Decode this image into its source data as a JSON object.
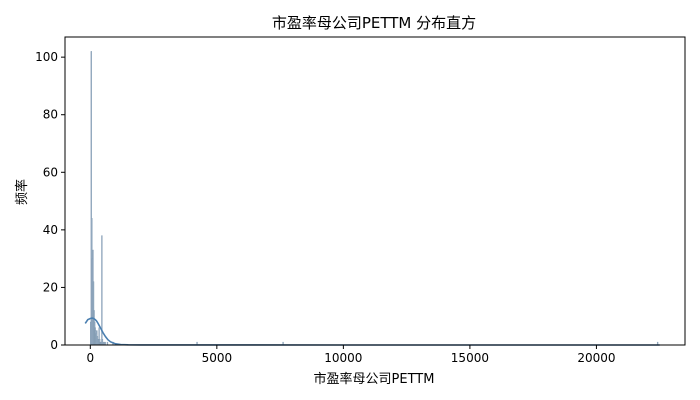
{
  "chart_data": {
    "type": "bar",
    "title": "市盈率母公司PETTM 分布直方",
    "xlabel": "市盈率母公司PETTM",
    "ylabel": "频率",
    "xlim": [
      -1000,
      23500
    ],
    "ylim": [
      0,
      107
    ],
    "xticks": [
      0,
      5000,
      10000,
      15000,
      20000
    ],
    "yticks": [
      0,
      20,
      40,
      60,
      80,
      100
    ],
    "grid": false,
    "legend": "none",
    "colors": {
      "bar_fill": "#9fb4c9",
      "bar_edge": "#7f98b0",
      "kde_line": "#4a7fb0",
      "axis": "#000000"
    },
    "histogram": {
      "bin_width": 22,
      "bins": [
        {
          "x": 0,
          "count": 8
        },
        {
          "x": 22,
          "count": 102
        },
        {
          "x": 44,
          "count": 44
        },
        {
          "x": 66,
          "count": 30
        },
        {
          "x": 88,
          "count": 33
        },
        {
          "x": 110,
          "count": 22
        },
        {
          "x": 132,
          "count": 12
        },
        {
          "x": 154,
          "count": 8
        },
        {
          "x": 176,
          "count": 6
        },
        {
          "x": 198,
          "count": 5
        },
        {
          "x": 220,
          "count": 4
        },
        {
          "x": 242,
          "count": 5
        },
        {
          "x": 264,
          "count": 3
        },
        {
          "x": 286,
          "count": 2
        },
        {
          "x": 308,
          "count": 2
        },
        {
          "x": 330,
          "count": 6
        },
        {
          "x": 352,
          "count": 2
        },
        {
          "x": 374,
          "count": 1
        },
        {
          "x": 396,
          "count": 1
        },
        {
          "x": 418,
          "count": 1
        },
        {
          "x": 440,
          "count": 38
        },
        {
          "x": 462,
          "count": 2
        },
        {
          "x": 484,
          "count": 1
        },
        {
          "x": 528,
          "count": 1
        },
        {
          "x": 572,
          "count": 1
        },
        {
          "x": 660,
          "count": 1
        },
        {
          "x": 880,
          "count": 1
        },
        {
          "x": 4200,
          "count": 1
        },
        {
          "x": 7600,
          "count": 1
        },
        {
          "x": 22400,
          "count": 1
        }
      ]
    },
    "kde": {
      "x": [
        -200,
        -100,
        0,
        50,
        100,
        150,
        200,
        250,
        300,
        400,
        500,
        600,
        700,
        800,
        1000,
        1200,
        1500,
        2000,
        3000,
        5000,
        10000,
        15000,
        20000,
        22500
      ],
      "y": [
        7.5,
        8.8,
        9.2,
        9.3,
        9.3,
        9.1,
        8.8,
        8.3,
        7.6,
        6.0,
        4.3,
        2.9,
        1.8,
        1.1,
        0.4,
        0.15,
        0.05,
        0.02,
        0.01,
        0.01,
        0.0,
        0.0,
        0.0,
        0.0
      ]
    }
  }
}
